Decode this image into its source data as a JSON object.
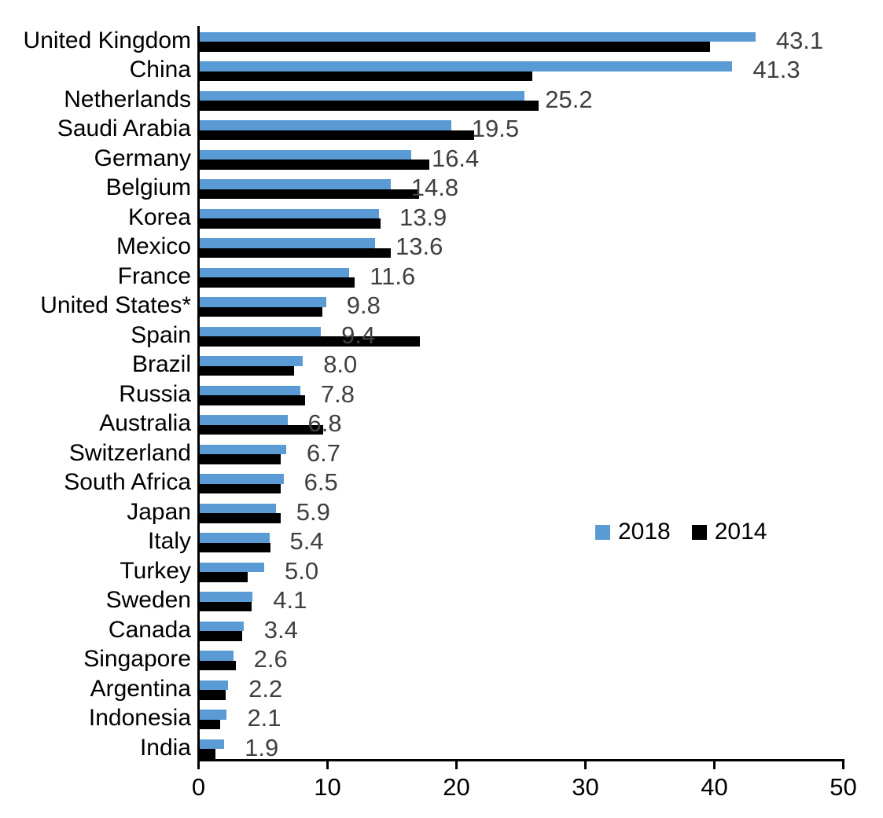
{
  "chart_data": {
    "type": "bar",
    "orientation": "horizontal",
    "title": "",
    "xlabel": "",
    "ylabel": "",
    "xlim": [
      0,
      50
    ],
    "x_ticks": [
      "0",
      "10",
      "20",
      "30",
      "40",
      "50"
    ],
    "grid": false,
    "legend_position": "middle-right",
    "categories": [
      "United Kingdom",
      "China",
      "Netherlands",
      "Saudi Arabia",
      "Germany",
      "Belgium",
      "Korea",
      "Mexico",
      "France",
      "United States*",
      "Spain",
      "Brazil",
      "Russia",
      "Australia",
      "Switzerland",
      "South Africa",
      "Japan",
      "Italy",
      "Turkey",
      "Sweden",
      "Canada",
      "Singapore",
      "Argentina",
      "Indonesia",
      "India"
    ],
    "series": [
      {
        "name": "2018",
        "color": "#5B9BD5",
        "values": [
          43.1,
          41.3,
          25.2,
          19.5,
          16.4,
          14.8,
          13.9,
          13.6,
          11.6,
          9.8,
          9.4,
          8.0,
          7.8,
          6.8,
          6.7,
          6.5,
          5.9,
          5.4,
          5.0,
          4.1,
          3.4,
          2.6,
          2.2,
          2.1,
          1.9
        ]
      },
      {
        "name": "2014",
        "color": "#000000",
        "values": [
          39.6,
          25.8,
          26.3,
          21.3,
          17.8,
          17.0,
          14.0,
          14.8,
          12.0,
          9.5,
          17.1,
          7.3,
          8.2,
          9.6,
          6.3,
          6.3,
          6.3,
          5.5,
          3.7,
          4.0,
          3.3,
          2.8,
          2.0,
          1.6,
          1.2
        ]
      }
    ],
    "value_labels": {
      "labeled_series": "2018",
      "color": "#404040",
      "values": [
        "43.1",
        "41.3",
        "25.2",
        "19.5",
        "16.4",
        "14.8",
        "13.9",
        "13.6",
        "11.6",
        "9.8",
        "9.4",
        "8.0",
        "7.8",
        "6.8",
        "6.7",
        "6.5",
        "5.9",
        "5.4",
        "5.0",
        "4.1",
        "3.4",
        "2.6",
        "2.2",
        "2.1",
        "1.9"
      ]
    }
  }
}
